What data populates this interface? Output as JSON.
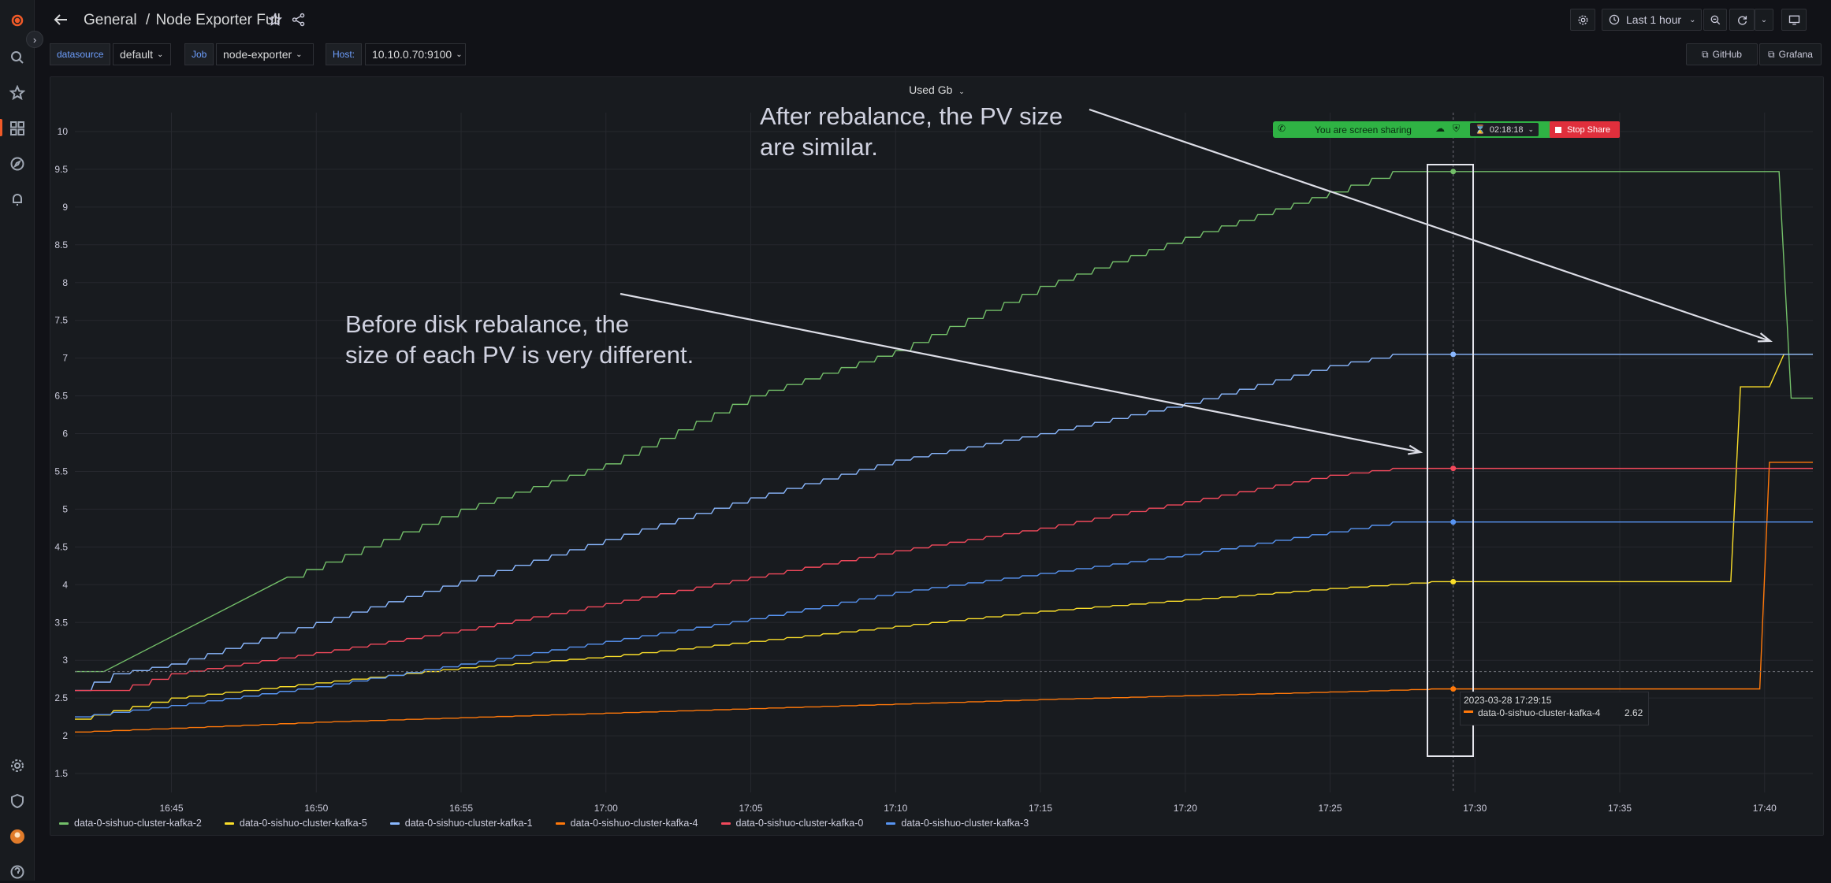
{
  "header": {
    "breadcrumb_folder": "General",
    "breadcrumb_sep": "/",
    "dashboard_title": "Node Exporter Full",
    "time_range": "Last 1 hour",
    "github_link": "GitHub",
    "grafana_link": "Grafana"
  },
  "variables": [
    {
      "label": "datasource",
      "value": "default"
    },
    {
      "label": "Job",
      "value": "node-exporter"
    },
    {
      "label": "Host:",
      "value": "10.10.0.70:9100"
    }
  ],
  "panel": {
    "title": "Used Gb"
  },
  "annotations": {
    "top_line1": "After rebalance, the PV size",
    "top_line2": "are similar.",
    "mid_line1": "Before disk rebalance, the",
    "mid_line2": "size of each PV is very different."
  },
  "screen_share": {
    "text": "You are screen sharing",
    "timer": "02:18:18",
    "stop_label": "Stop Share"
  },
  "tooltip": {
    "time": "2023-03-28 17:29:15",
    "series": "data-0-sishuo-cluster-kafka-4",
    "value": "2.62"
  },
  "colors": {
    "kafka-2": "#73bf69",
    "kafka-5": "#fade2a",
    "kafka-1": "#8ab8ff",
    "kafka-4": "#ff780a",
    "kafka-0": "#f2495c",
    "kafka-3": "#5794f2",
    "accent": "#f05a28"
  },
  "chart_data": {
    "type": "line",
    "title": "Used Gb",
    "xlabel": "",
    "ylabel": "",
    "x_ticks": [
      "16:45",
      "16:50",
      "16:55",
      "17:00",
      "17:05",
      "17:10",
      "17:15",
      "17:20",
      "17:25",
      "17:30",
      "17:35",
      "17:40"
    ],
    "y_ticks": [
      "1.5",
      "2",
      "2.5",
      "3",
      "3.5",
      "4",
      "4.5",
      "5",
      "5.5",
      "6",
      "6.5",
      "7",
      "7.5",
      "8",
      "8.5",
      "9",
      "9.5",
      "10"
    ],
    "ylim": [
      1.25,
      10.25
    ],
    "xlim": [
      "16:41:40",
      "17:41:40"
    ],
    "legend_placement": "bottom-left",
    "grid": true,
    "series": [
      {
        "name": "data-0-sishuo-cluster-kafka-2",
        "color": "#73bf69",
        "x": [
          "16:41:40",
          "16:42:40",
          "16:49:00",
          "16:55:00",
          "17:00:00",
          "17:05:00",
          "17:10:00",
          "17:15:00",
          "17:20:00",
          "17:25:00",
          "17:27:10",
          "17:40:30",
          "17:40:55",
          "17:41:40"
        ],
        "y": [
          2.85,
          2.85,
          4.1,
          5.0,
          5.6,
          6.5,
          7.1,
          7.95,
          8.6,
          9.2,
          9.47,
          9.47,
          6.47,
          6.47
        ]
      },
      {
        "name": "data-0-sishuo-cluster-kafka-5",
        "color": "#fade2a",
        "x": [
          "16:41:40",
          "16:45:00",
          "16:50:00",
          "16:55:00",
          "17:00:00",
          "17:05:00",
          "17:10:00",
          "17:15:00",
          "17:20:00",
          "17:25:00",
          "17:28:30",
          "17:38:50",
          "17:39:10",
          "17:40:10",
          "17:40:40",
          "17:41:40"
        ],
        "y": [
          2.22,
          2.5,
          2.7,
          2.9,
          3.05,
          3.25,
          3.45,
          3.65,
          3.8,
          3.95,
          4.04,
          4.04,
          6.62,
          6.62,
          7.05,
          7.05
        ]
      },
      {
        "name": "data-0-sishuo-cluster-kafka-1",
        "color": "#8ab8ff",
        "x": [
          "16:41:40",
          "16:43:00",
          "16:45:00",
          "16:50:00",
          "16:55:00",
          "17:00:00",
          "17:05:00",
          "17:10:00",
          "17:15:00",
          "17:20:00",
          "17:25:00",
          "17:27:10",
          "17:41:40"
        ],
        "y": [
          2.6,
          2.82,
          2.95,
          3.5,
          4.05,
          4.6,
          5.15,
          5.65,
          6.0,
          6.4,
          6.9,
          7.05,
          7.05
        ]
      },
      {
        "name": "data-0-sishuo-cluster-kafka-4",
        "color": "#ff780a",
        "x": [
          "16:41:40",
          "16:45:00",
          "16:50:00",
          "16:55:00",
          "17:00:00",
          "17:05:00",
          "17:10:00",
          "17:15:00",
          "17:20:00",
          "17:25:00",
          "17:28:30",
          "17:39:50",
          "17:40:10",
          "17:41:40"
        ],
        "y": [
          2.05,
          2.1,
          2.18,
          2.24,
          2.3,
          2.36,
          2.42,
          2.48,
          2.53,
          2.58,
          2.62,
          2.62,
          5.62,
          5.62
        ]
      },
      {
        "name": "data-0-sishuo-cluster-kafka-0",
        "color": "#f2495c",
        "x": [
          "16:41:40",
          "16:43:00",
          "16:45:00",
          "16:50:00",
          "16:55:00",
          "17:00:00",
          "17:05:00",
          "17:10:00",
          "17:15:00",
          "17:20:00",
          "17:25:00",
          "17:27:10",
          "17:41:40"
        ],
        "y": [
          2.6,
          2.6,
          2.82,
          3.1,
          3.4,
          3.75,
          4.1,
          4.45,
          4.75,
          5.1,
          5.45,
          5.54,
          5.54
        ]
      },
      {
        "name": "data-0-sishuo-cluster-kafka-3",
        "color": "#5794f2",
        "x": [
          "16:41:40",
          "16:45:00",
          "16:50:00",
          "16:55:00",
          "17:00:00",
          "17:05:00",
          "17:10:00",
          "17:15:00",
          "17:20:00",
          "17:25:00",
          "17:27:10",
          "17:41:40"
        ],
        "y": [
          2.25,
          2.4,
          2.65,
          2.95,
          3.25,
          3.55,
          3.9,
          4.15,
          4.4,
          4.7,
          4.83,
          4.83
        ]
      }
    ]
  }
}
